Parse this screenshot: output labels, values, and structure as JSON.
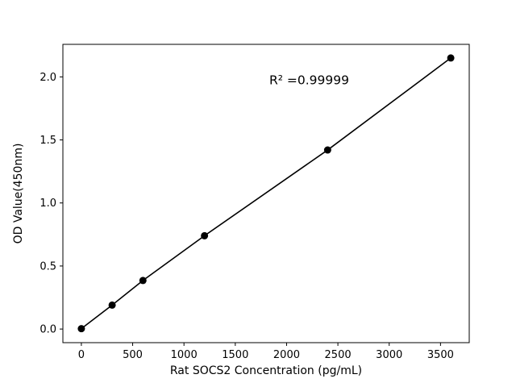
{
  "figure": {
    "background": "#ffffff"
  },
  "chart_data": {
    "type": "scatter",
    "title": "",
    "xlabel": "Rat SOCS2 Concentration (pg/mL)",
    "ylabel": "OD Value(450nm)",
    "x": [
      0,
      300,
      600,
      1200,
      2400,
      3600
    ],
    "y": [
      0.003,
      0.19,
      0.385,
      0.74,
      1.42,
      2.15
    ],
    "line_through_points": true,
    "marker": "circle",
    "marker_color": "#000000",
    "line_color": "#000000",
    "annotation": {
      "text": "R² =0.99999",
      "x": 2220,
      "y": 1.94
    },
    "xlim": [
      -180,
      3780
    ],
    "ylim": [
      -0.108,
      2.258
    ],
    "xticks": [
      0,
      500,
      1000,
      1500,
      2000,
      2500,
      3000,
      3500
    ],
    "xtick_labels": [
      "0",
      "500",
      "1000",
      "1500",
      "2000",
      "2500",
      "3000",
      "3500"
    ],
    "yticks": [
      0.0,
      0.5,
      1.0,
      1.5,
      2.0
    ],
    "ytick_labels": [
      "0.0",
      "0.5",
      "1.0",
      "1.5",
      "2.0"
    ],
    "grid": false,
    "legend": null
  }
}
